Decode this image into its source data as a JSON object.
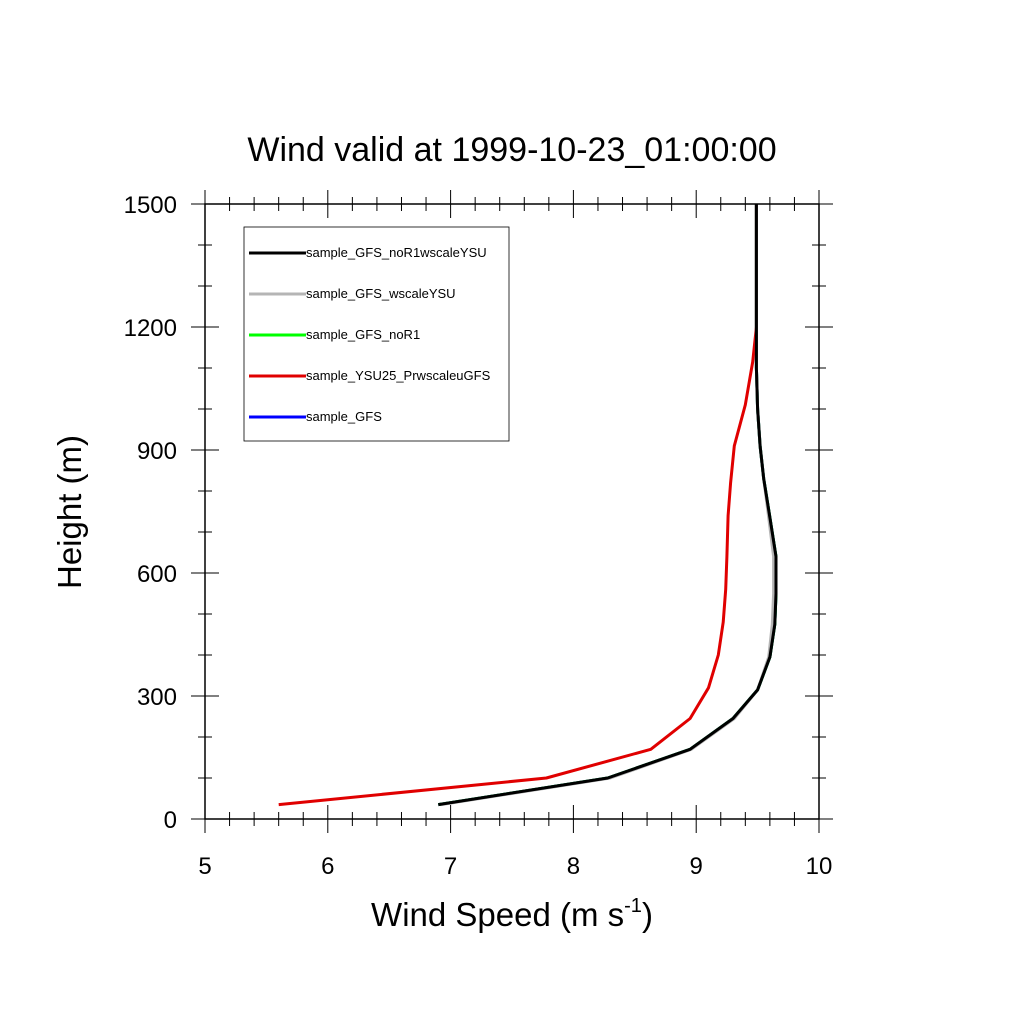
{
  "chart_data": {
    "type": "line",
    "title": "Wind valid at 1999-10-23_01:00:00",
    "xlabel_main": "Wind Speed (m s",
    "xlabel_sup": "-1",
    "xlabel_close": ")",
    "ylabel": "Height (m)",
    "xlim": [
      5,
      10
    ],
    "ylim": [
      0,
      1500
    ],
    "x_ticks": [
      "5",
      "6",
      "7",
      "8",
      "9",
      "10"
    ],
    "y_ticks": [
      "0",
      "300",
      "600",
      "900",
      "1200",
      "1500"
    ],
    "grid": false,
    "legend_position": "top-left",
    "series": [
      {
        "name": "sample_GFS_noR1wscaleYSU",
        "color": "#000000",
        "points": [
          [
            6.9,
            35
          ],
          [
            8.28,
            100
          ],
          [
            8.95,
            170
          ],
          [
            9.3,
            245
          ],
          [
            9.5,
            315
          ],
          [
            9.6,
            395
          ],
          [
            9.64,
            475
          ],
          [
            9.65,
            550
          ],
          [
            9.65,
            640
          ],
          [
            9.6,
            735
          ],
          [
            9.55,
            830
          ],
          [
            9.52,
            910
          ],
          [
            9.5,
            1000
          ],
          [
            9.49,
            1100
          ],
          [
            9.49,
            1200
          ],
          [
            9.49,
            1300
          ],
          [
            9.49,
            1400
          ],
          [
            9.49,
            1500
          ]
        ]
      },
      {
        "name": "sample_GFS_wscaleYSU",
        "color": "#b5b5b5",
        "points": [
          [
            6.92,
            35
          ],
          [
            8.3,
            100
          ],
          [
            8.96,
            170
          ],
          [
            9.31,
            245
          ],
          [
            9.5,
            315
          ],
          [
            9.59,
            395
          ],
          [
            9.62,
            475
          ],
          [
            9.63,
            550
          ],
          [
            9.63,
            640
          ],
          [
            9.59,
            735
          ],
          [
            9.55,
            830
          ],
          [
            9.52,
            910
          ],
          [
            9.5,
            1000
          ],
          [
            9.49,
            1100
          ],
          [
            9.49,
            1200
          ],
          [
            9.49,
            1300
          ],
          [
            9.49,
            1400
          ],
          [
            9.49,
            1500
          ]
        ]
      },
      {
        "name": "sample_GFS_noR1",
        "color": "#00ff00",
        "points": [
          [
            6.9,
            35
          ],
          [
            8.28,
            100
          ],
          [
            8.95,
            170
          ],
          [
            9.3,
            245
          ],
          [
            9.5,
            315
          ],
          [
            9.6,
            395
          ],
          [
            9.64,
            475
          ],
          [
            9.65,
            550
          ],
          [
            9.65,
            640
          ],
          [
            9.6,
            735
          ],
          [
            9.55,
            830
          ],
          [
            9.52,
            910
          ],
          [
            9.5,
            1000
          ],
          [
            9.49,
            1100
          ],
          [
            9.49,
            1200
          ],
          [
            9.49,
            1300
          ],
          [
            9.49,
            1400
          ],
          [
            9.49,
            1500
          ]
        ]
      },
      {
        "name": "sample_YSU25_PrwscaleuGFS",
        "color": "#e00000",
        "points": [
          [
            5.6,
            35
          ],
          [
            7.78,
            100
          ],
          [
            8.63,
            170
          ],
          [
            8.95,
            245
          ],
          [
            9.1,
            320
          ],
          [
            9.18,
            400
          ],
          [
            9.22,
            480
          ],
          [
            9.24,
            560
          ],
          [
            9.25,
            640
          ],
          [
            9.26,
            740
          ],
          [
            9.28,
            820
          ],
          [
            9.31,
            910
          ],
          [
            9.4,
            1010
          ],
          [
            9.46,
            1115
          ],
          [
            9.49,
            1200
          ],
          [
            9.49,
            1300
          ],
          [
            9.49,
            1400
          ],
          [
            9.49,
            1500
          ]
        ]
      },
      {
        "name": "sample_GFS",
        "color": "#0000ff",
        "points": [
          [
            6.9,
            35
          ],
          [
            8.28,
            100
          ],
          [
            8.95,
            170
          ],
          [
            9.3,
            245
          ],
          [
            9.5,
            315
          ],
          [
            9.6,
            395
          ],
          [
            9.64,
            475
          ],
          [
            9.65,
            550
          ],
          [
            9.65,
            640
          ],
          [
            9.6,
            735
          ],
          [
            9.55,
            830
          ],
          [
            9.52,
            910
          ],
          [
            9.5,
            1000
          ],
          [
            9.49,
            1100
          ],
          [
            9.49,
            1200
          ],
          [
            9.49,
            1300
          ],
          [
            9.49,
            1400
          ],
          [
            9.49,
            1500
          ]
        ]
      }
    ]
  }
}
